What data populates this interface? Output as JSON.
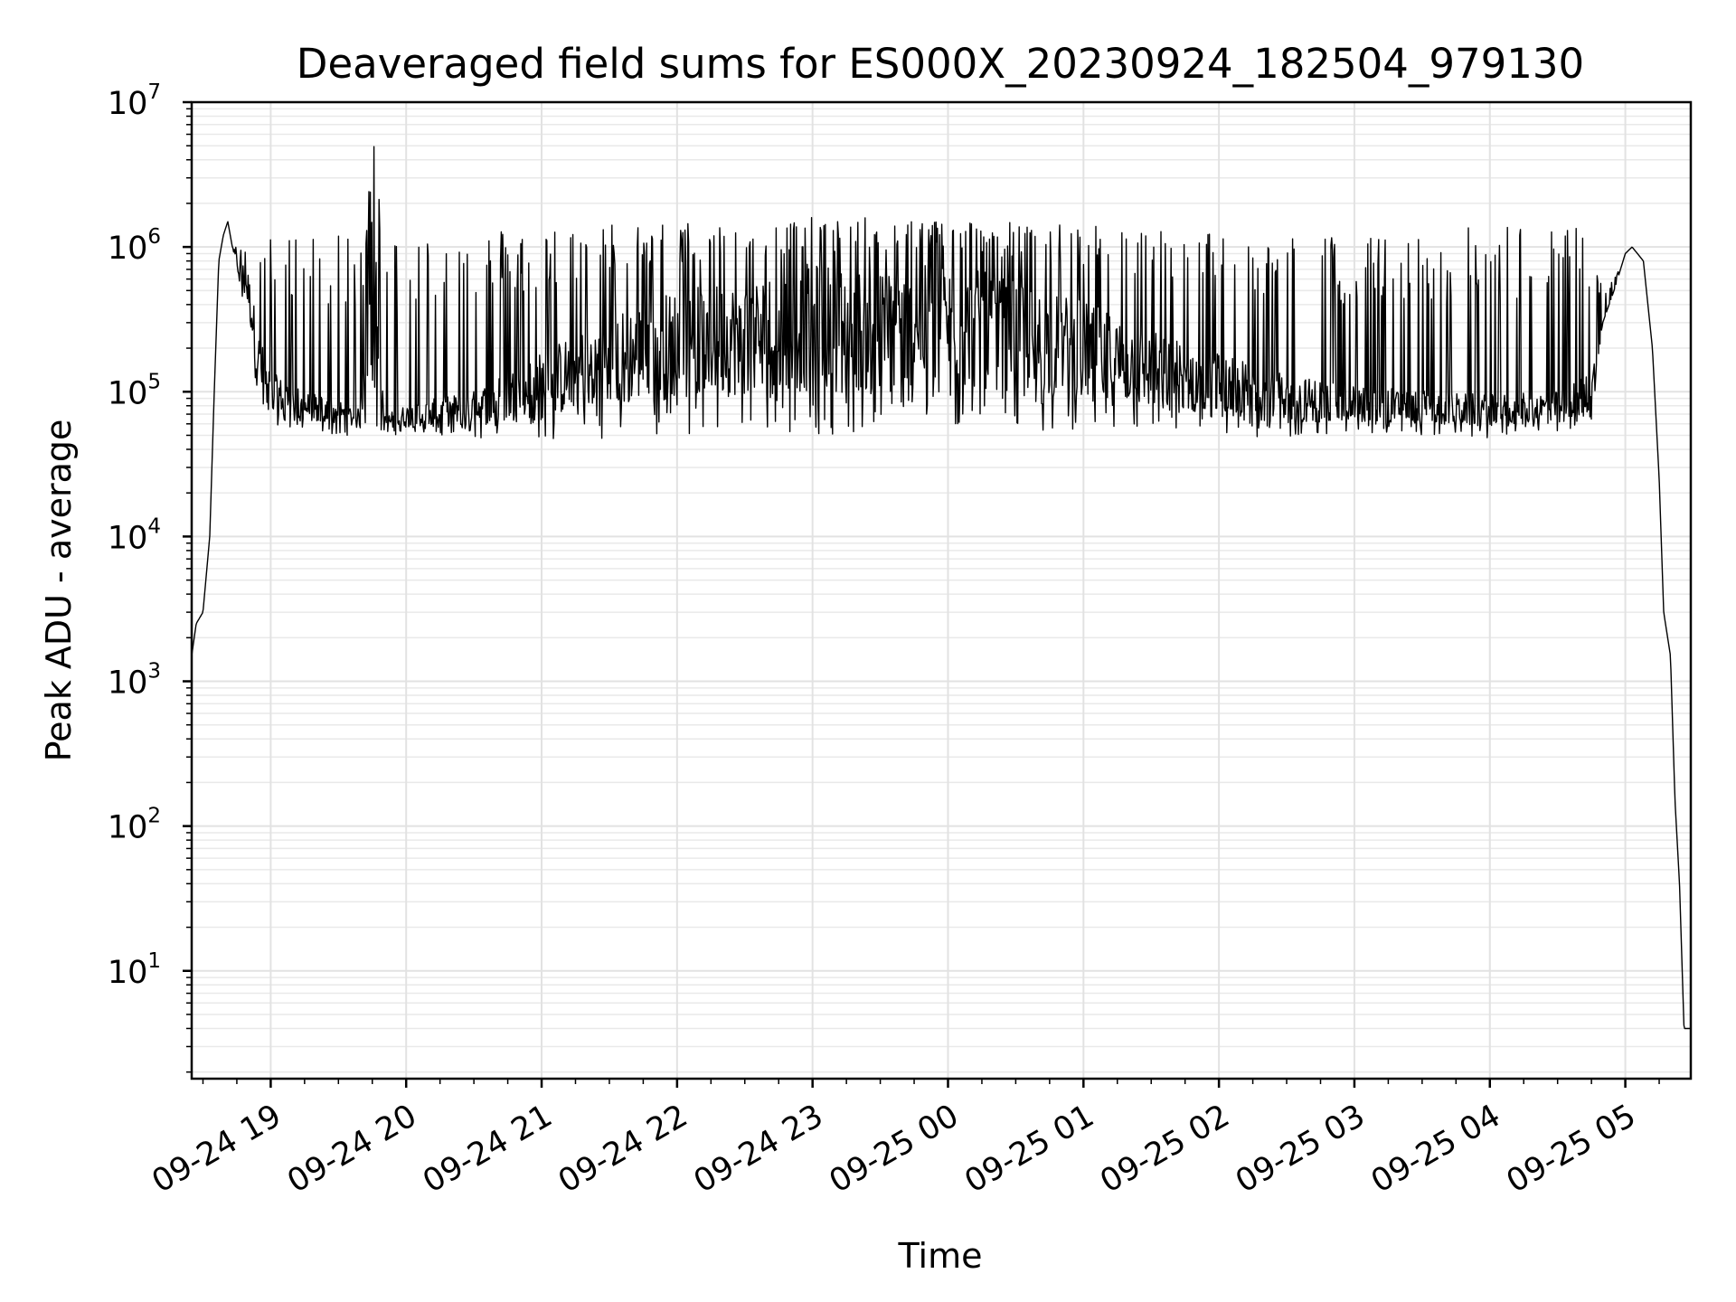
{
  "chart_data": {
    "type": "line",
    "title": "Deaveraged field sums for ES000X_20230924_182504_979130",
    "xlabel": "Time",
    "ylabel": "Peak ADU - average",
    "yscale": "log",
    "ylim": [
      1.8,
      10000000
    ],
    "xlim": [
      "2023-09-24 18:25",
      "2023-09-25 05:29"
    ],
    "grid": "on",
    "legend": "none",
    "line_color": "#000000",
    "x_ticks": [
      "09-24 19",
      "09-24 20",
      "09-24 21",
      "09-24 22",
      "09-24 23",
      "09-25 00",
      "09-25 01",
      "09-25 02",
      "09-25 03",
      "09-25 04",
      "09-25 05"
    ],
    "y_ticks": [
      {
        "base": "10",
        "exp": "1"
      },
      {
        "base": "10",
        "exp": "2"
      },
      {
        "base": "10",
        "exp": "3"
      },
      {
        "base": "10",
        "exp": "4"
      },
      {
        "base": "10",
        "exp": "5"
      },
      {
        "base": "10",
        "exp": "6"
      },
      {
        "base": "10",
        "exp": "7"
      }
    ],
    "series": [
      {
        "x": [
          "2023-09-24 18:25",
          "2023-09-24 18:27",
          "2023-09-24 18:30",
          "2023-09-24 18:33",
          "2023-09-24 18:35",
          "2023-09-24 18:37",
          "2023-09-24 18:39",
          "2023-09-24 18:41",
          "2023-09-24 18:43",
          "2023-09-24 18:46",
          "2023-09-24 18:50",
          "2023-09-24 18:55",
          "2023-09-24 19:00",
          "2023-09-24 19:15",
          "2023-09-24 19:30",
          "2023-09-24 19:40",
          "2023-09-24 19:46",
          "2023-09-24 19:47",
          "2023-09-24 19:48",
          "2023-09-24 19:50",
          "2023-09-24 20:00",
          "2023-09-24 20:30",
          "2023-09-24 21:00",
          "2023-09-24 21:30",
          "2023-09-24 22:00",
          "2023-09-24 22:30",
          "2023-09-24 23:00",
          "2023-09-24 23:30",
          "2023-09-25 00:00",
          "2023-09-25 00:30",
          "2023-09-25 01:00",
          "2023-09-25 01:30",
          "2023-09-25 02:00",
          "2023-09-25 02:30",
          "2023-09-25 03:00",
          "2023-09-25 03:30",
          "2023-09-25 04:00",
          "2023-09-25 04:30",
          "2023-09-25 04:45",
          "2023-09-25 04:50",
          "2023-09-25 04:55",
          "2023-09-25 05:00",
          "2023-09-25 05:03",
          "2023-09-25 05:08",
          "2023-09-25 05:12",
          "2023-09-25 05:15",
          "2023-09-25 05:17",
          "2023-09-25 05:20",
          "2023-09-25 05:22",
          "2023-09-25 05:24",
          "2023-09-25 05:26",
          "2023-09-25 05:29"
        ],
        "y": [
          1500,
          2500,
          3000,
          10000,
          100000,
          800000,
          1200000,
          1500000,
          1000000,
          800000,
          600000,
          200000,
          120000,
          90000,
          80000,
          70000,
          5500000,
          70000,
          2200000,
          65000,
          75000,
          90000,
          150000,
          250000,
          350000,
          400000,
          500000,
          450000,
          500000,
          400000,
          300000,
          200000,
          150000,
          110000,
          100000,
          90000,
          85000,
          90000,
          120000,
          300000,
          500000,
          900000,
          1000000,
          800000,
          200000,
          25000,
          3000,
          1500,
          150,
          40,
          4,
          4
        ],
        "upper": [
          1500,
          2500,
          3000,
          10000,
          100000,
          800000,
          1200000,
          1500000,
          1000000,
          1000000,
          1100000,
          1100000,
          1200000,
          1300000,
          1200000,
          1100000,
          5500000,
          1100000,
          2200000,
          1200000,
          1300000,
          1400000,
          1400000,
          1500000,
          1500000,
          1500000,
          1600000,
          1600000,
          1600000,
          1500000,
          1400000,
          1400000,
          1300000,
          1300000,
          1200000,
          1200000,
          1500000,
          1500000,
          1300000,
          500000,
          600000,
          900000,
          1000000,
          800000,
          200000,
          25000,
          3000,
          1500,
          150,
          40,
          4,
          4
        ],
        "lower": [
          1500,
          2500,
          3000,
          10000,
          100000,
          800000,
          1200000,
          1500000,
          1000000,
          500000,
          300000,
          70000,
          60000,
          55000,
          50000,
          50000,
          50000,
          50000,
          50000,
          50000,
          50000,
          48000,
          45000,
          48000,
          50000,
          50000,
          50000,
          52000,
          55000,
          55000,
          50000,
          48000,
          47000,
          48000,
          50000,
          50000,
          48000,
          52000,
          60000,
          300000,
          500000,
          900000,
          1000000,
          800000,
          200000,
          25000,
          3000,
          1500,
          150,
          40,
          4,
          4
        ]
      }
    ]
  }
}
